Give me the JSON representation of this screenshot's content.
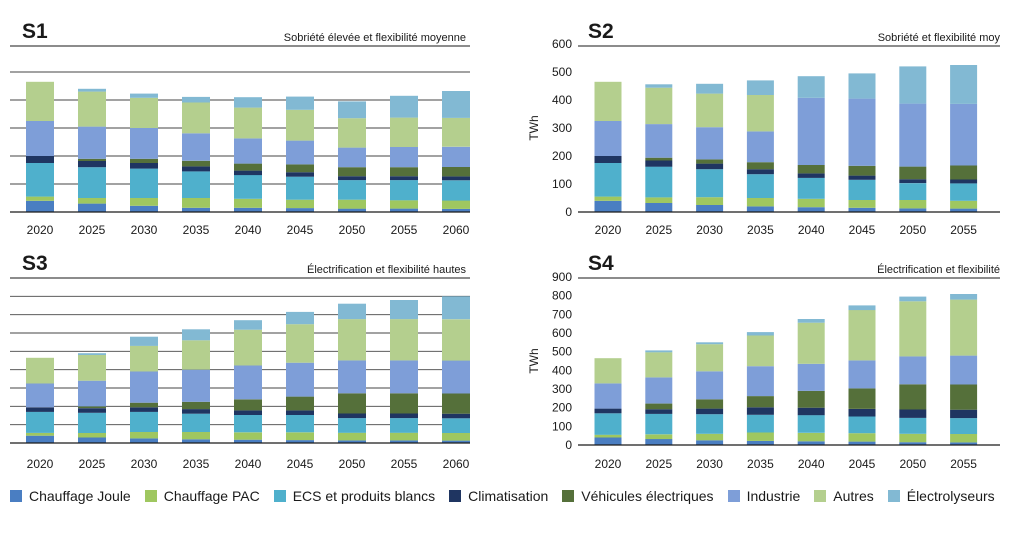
{
  "colors": {
    "chauffage_joule": "#4a7ec2",
    "chauffage_pac": "#9fc760",
    "ecs": "#4fb0cc",
    "climatisation": "#1f3561",
    "vehicules": "#55703a",
    "industrie": "#7e9ed8",
    "autres": "#b4cf8e",
    "electrolyse": "#82b9d3",
    "axis": "#1a1a1a",
    "grid": "#444444"
  },
  "legend": [
    {
      "key": "chauffage_joule",
      "label": "Chauffage Joule"
    },
    {
      "key": "chauffage_pac",
      "label": "Chauffage PAC"
    },
    {
      "key": "ecs",
      "label": "ECS et produits blancs"
    },
    {
      "key": "climatisation",
      "label": "Climatisation"
    },
    {
      "key": "vehicules",
      "label": "Véhicules électriques"
    },
    {
      "key": "industrie",
      "label": "Industrie"
    },
    {
      "key": "autres",
      "label": "Autres"
    },
    {
      "key": "electrolyse",
      "label": "Électrolyseurs"
    }
  ],
  "chart_data": [
    {
      "id": "s1",
      "type": "bar",
      "stacked": true,
      "title": "S1",
      "subtitle": "Sobriété élevée et flexibilité moyenne",
      "ylabel": "",
      "ylim": [
        0,
        600
      ],
      "yticks": [],
      "grid": true,
      "categories": [
        "2020",
        "2025",
        "2030",
        "2035",
        "2040",
        "2045",
        "2050",
        "2055",
        "2060"
      ],
      "series": [
        {
          "key": "chauffage_joule",
          "name": "Chauffage Joule",
          "values": [
            40,
            30,
            22,
            15,
            15,
            14,
            12,
            12,
            11
          ]
        },
        {
          "key": "chauffage_pac",
          "name": "Chauffage PAC",
          "values": [
            15,
            20,
            28,
            35,
            32,
            30,
            32,
            30,
            30
          ]
        },
        {
          "key": "ecs",
          "name": "ECS et produits blancs",
          "values": [
            120,
            110,
            105,
            95,
            85,
            82,
            70,
            72,
            72
          ]
        },
        {
          "key": "climatisation",
          "name": "Climatisation",
          "values": [
            25,
            22,
            20,
            18,
            16,
            16,
            14,
            14,
            14
          ]
        },
        {
          "key": "vehicules",
          "name": "Véhicules électriques",
          "values": [
            0,
            8,
            15,
            20,
            25,
            28,
            32,
            32,
            34
          ]
        },
        {
          "key": "industrie",
          "name": "Industrie",
          "values": [
            125,
            115,
            110,
            98,
            90,
            85,
            70,
            72,
            72
          ]
        },
        {
          "key": "autres",
          "name": "Autres",
          "values": [
            140,
            125,
            108,
            110,
            110,
            110,
            105,
            105,
            103
          ]
        },
        {
          "key": "electrolyse",
          "name": "Électrolyseurs",
          "values": [
            0,
            10,
            15,
            20,
            37,
            47,
            60,
            78,
            96
          ]
        }
      ]
    },
    {
      "id": "s2",
      "type": "bar",
      "stacked": true,
      "title": "S2",
      "subtitle": "Sobriété et flexibilité moy",
      "ylabel": "TWh",
      "ylim": [
        0,
        600
      ],
      "yticks": [
        0,
        100,
        200,
        300,
        400,
        500,
        600
      ],
      "grid": false,
      "categories": [
        "2020",
        "2025",
        "2030",
        "2035",
        "2040",
        "2045",
        "2050",
        "2055"
      ],
      "series": [
        {
          "key": "chauffage_joule",
          "name": "Chauffage Joule",
          "values": [
            40,
            32,
            25,
            20,
            17,
            15,
            13,
            12
          ]
        },
        {
          "key": "chauffage_pac",
          "name": "Chauffage PAC",
          "values": [
            15,
            20,
            28,
            30,
            30,
            28,
            30,
            28
          ]
        },
        {
          "key": "ecs",
          "name": "ECS et produits blancs",
          "values": [
            120,
            110,
            100,
            85,
            75,
            72,
            60,
            62
          ]
        },
        {
          "key": "climatisation",
          "name": "Climatisation",
          "values": [
            25,
            22,
            20,
            18,
            16,
            15,
            14,
            14
          ]
        },
        {
          "key": "vehicules",
          "name": "Véhicules électriques",
          "values": [
            0,
            10,
            15,
            25,
            30,
            35,
            45,
            50
          ]
        },
        {
          "key": "industrie",
          "name": "Industrie",
          "values": [
            125,
            120,
            115,
            110,
            240,
            240,
            225,
            220
          ]
        },
        {
          "key": "autres",
          "name": "Autres",
          "values": [
            140,
            130,
            120,
            130,
            0,
            0,
            0,
            0
          ]
        },
        {
          "key": "electrolyse",
          "name": "Électrolyseurs",
          "values": [
            0,
            12,
            35,
            52,
            77,
            90,
            133,
            139
          ]
        }
      ]
    },
    {
      "id": "s3",
      "type": "bar",
      "stacked": true,
      "title": "S3",
      "subtitle": "Électrification et flexibilité hautes",
      "ylabel": "",
      "ylim": [
        0,
        900
      ],
      "yticks": [],
      "grid": true,
      "categories": [
        "2020",
        "2025",
        "2030",
        "2035",
        "2040",
        "2045",
        "2050",
        "2055",
        "2060"
      ],
      "series": [
        {
          "key": "chauffage_joule",
          "name": "Chauffage Joule",
          "values": [
            40,
            30,
            25,
            20,
            18,
            16,
            14,
            14,
            13
          ]
        },
        {
          "key": "chauffage_pac",
          "name": "Chauffage PAC",
          "values": [
            15,
            25,
            35,
            40,
            40,
            42,
            42,
            42,
            42
          ]
        },
        {
          "key": "ecs",
          "name": "ECS et produits blancs",
          "values": [
            115,
            110,
            110,
            100,
            95,
            95,
            80,
            80,
            80
          ]
        },
        {
          "key": "climatisation",
          "name": "Climatisation",
          "values": [
            25,
            25,
            25,
            25,
            25,
            25,
            25,
            25,
            25
          ]
        },
        {
          "key": "vehicules",
          "name": "Véhicules électriques",
          "values": [
            0,
            10,
            25,
            40,
            60,
            75,
            110,
            110,
            110
          ]
        },
        {
          "key": "industrie",
          "name": "Industrie",
          "values": [
            130,
            140,
            170,
            175,
            185,
            185,
            180,
            180,
            180
          ]
        },
        {
          "key": "autres",
          "name": "Autres",
          "values": [
            140,
            140,
            140,
            160,
            195,
            210,
            225,
            225,
            225
          ]
        },
        {
          "key": "electrolyse",
          "name": "Électrolyseurs",
          "values": [
            0,
            10,
            50,
            60,
            52,
            67,
            84,
            104,
            125
          ]
        }
      ]
    },
    {
      "id": "s4",
      "type": "bar",
      "stacked": true,
      "title": "S4",
      "subtitle": "Électrification et flexibilité",
      "ylabel": "TWh",
      "ylim": [
        0,
        900
      ],
      "yticks": [
        0,
        100,
        200,
        300,
        400,
        500,
        600,
        700,
        800,
        900
      ],
      "grid": false,
      "categories": [
        "2020",
        "2025",
        "2030",
        "2035",
        "2040",
        "2045",
        "2050",
        "2055"
      ],
      "series": [
        {
          "key": "chauffage_joule",
          "name": "Chauffage Joule",
          "values": [
            40,
            32,
            25,
            22,
            20,
            18,
            15,
            14
          ]
        },
        {
          "key": "chauffage_pac",
          "name": "Chauffage PAC",
          "values": [
            15,
            25,
            35,
            45,
            45,
            45,
            45,
            45
          ]
        },
        {
          "key": "ecs",
          "name": "ECS et produits blancs",
          "values": [
            115,
            110,
            105,
            95,
            95,
            90,
            85,
            85
          ]
        },
        {
          "key": "climatisation",
          "name": "Climatisation",
          "values": [
            25,
            25,
            30,
            40,
            40,
            40,
            45,
            45
          ]
        },
        {
          "key": "vehicules",
          "name": "Véhicules électriques",
          "values": [
            0,
            30,
            50,
            60,
            90,
            110,
            135,
            135
          ]
        },
        {
          "key": "industrie",
          "name": "Industrie",
          "values": [
            135,
            140,
            150,
            160,
            145,
            150,
            150,
            155
          ]
        },
        {
          "key": "autres",
          "name": "Autres",
          "values": [
            135,
            135,
            145,
            165,
            220,
            270,
            295,
            300
          ]
        },
        {
          "key": "electrolyse",
          "name": "Électrolyseurs",
          "values": [
            0,
            10,
            10,
            18,
            20,
            25,
            25,
            30
          ]
        }
      ]
    }
  ]
}
